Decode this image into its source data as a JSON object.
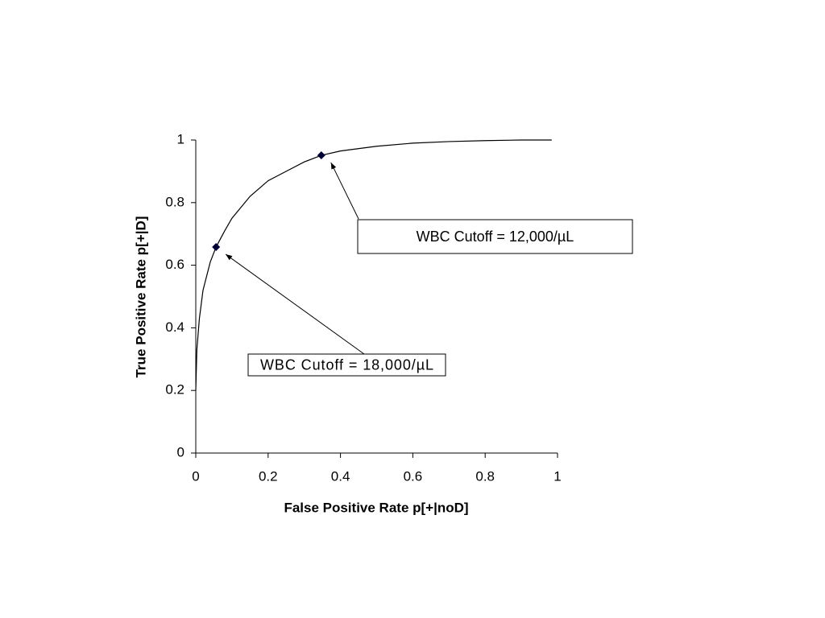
{
  "chart_data": {
    "type": "line",
    "x_label": "False Positive Rate p[+|noD]",
    "y_label": "True Positive Rate p[+|D]",
    "xlim": [
      0,
      1
    ],
    "ylim": [
      0,
      1
    ],
    "xticks": [
      0,
      0.2,
      0.4,
      0.6,
      0.8,
      1
    ],
    "yticks": [
      0,
      0.2,
      0.4,
      0.6,
      0.8,
      1
    ],
    "series": [
      {
        "color": "#000000",
        "x": [
          0,
          0.003,
          0.01,
          0.02,
          0.04,
          0.056,
          0.08,
          0.1,
          0.15,
          0.2,
          0.25,
          0.3,
          0.347,
          0.4,
          0.5,
          0.6,
          0.7,
          0.8,
          0.9,
          0.984
        ],
        "values": [
          0.2,
          0.33,
          0.43,
          0.52,
          0.61,
          0.658,
          0.71,
          0.75,
          0.82,
          0.87,
          0.9,
          0.93,
          0.951,
          0.965,
          0.98,
          0.99,
          0.995,
          0.998,
          1,
          1
        ]
      },
      {
        "color": "#000033",
        "x": [
          0.056,
          0.347
        ],
        "values": [
          0.658,
          0.951
        ]
      }
    ],
    "annotations": [
      "WBC Cutoff = 12,000/µL",
      "WBC Cutoff = 18,000/µL"
    ]
  }
}
